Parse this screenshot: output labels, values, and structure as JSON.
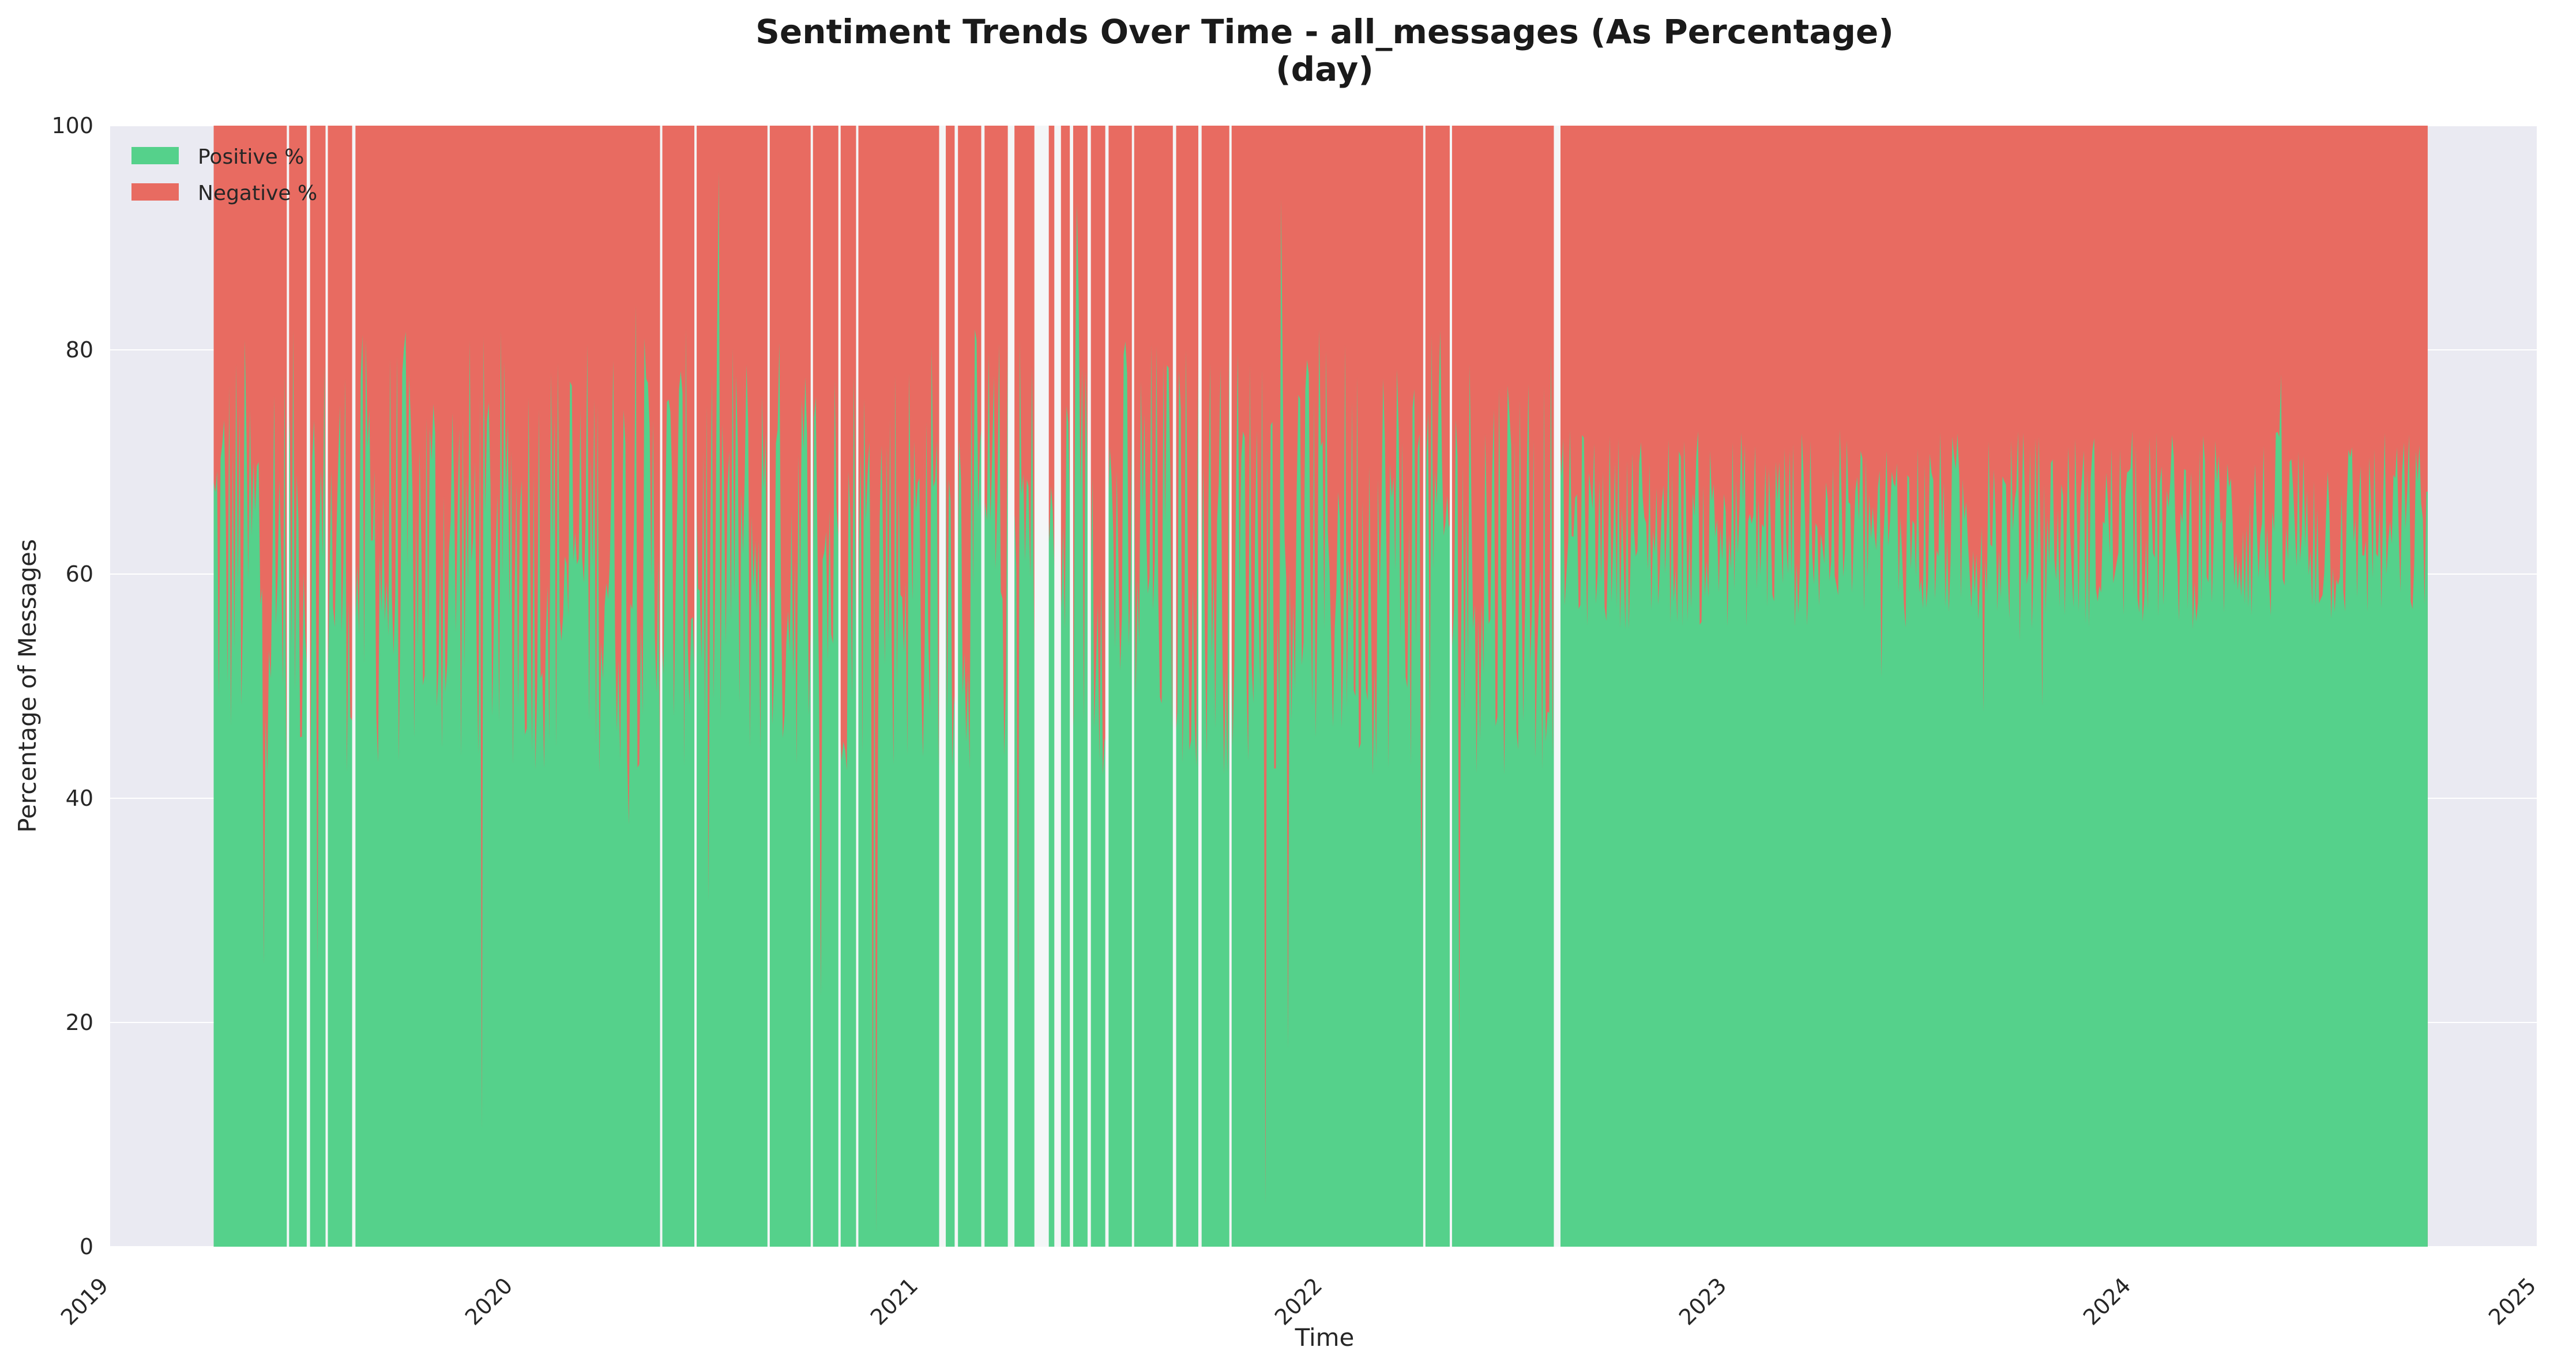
{
  "chart_data": {
    "type": "area",
    "title": "Sentiment Trends Over Time - all_messages (As Percentage)",
    "subtitle": "(day)",
    "xlabel": "Time",
    "ylabel": "Percentage of Messages",
    "x_ticks": [
      "2019",
      "2020",
      "2021",
      "2022",
      "2023",
      "2024",
      "2025"
    ],
    "y_ticks": [
      "0",
      "20",
      "40",
      "60",
      "80",
      "100"
    ],
    "xlim": [
      "2019-01-01",
      "2025-01-01"
    ],
    "ylim": [
      0,
      100
    ],
    "data_range": [
      "2019-04-05",
      "2024-09-24"
    ],
    "stacked": true,
    "grid": true,
    "legend_position": "top-left",
    "series": [
      {
        "name": "Positive %",
        "color": "#55d18b",
        "approx_mean": [
          {
            "period": "2019-04-05 to 2022-07-31",
            "value": 62
          },
          {
            "period": "2022-08-01 to 2024-09-24",
            "value": 64
          }
        ]
      },
      {
        "name": "Negative %",
        "color": "#e86b61",
        "approx_mean": [
          {
            "period": "2019-04-05 to 2022-07-31",
            "value": 38
          },
          {
            "period": "2022-08-01 to 2024-09-24",
            "value": 36
          }
        ]
      }
    ],
    "gaps": [
      [
        "2019-06-10",
        "2019-06-12"
      ],
      [
        "2019-06-28",
        "2019-07-01"
      ],
      [
        "2019-07-15",
        "2019-07-17"
      ],
      [
        "2019-08-08",
        "2019-08-11"
      ],
      [
        "2020-05-12",
        "2020-05-14"
      ],
      [
        "2020-06-12",
        "2020-06-14"
      ],
      [
        "2020-08-17",
        "2020-08-19"
      ],
      [
        "2020-09-25",
        "2020-09-27"
      ],
      [
        "2020-10-20",
        "2020-10-22"
      ],
      [
        "2020-11-05",
        "2020-11-07"
      ],
      [
        "2021-01-19",
        "2021-01-25"
      ],
      [
        "2021-02-02",
        "2021-02-05"
      ],
      [
        "2021-02-26",
        "2021-03-01"
      ],
      [
        "2021-03-22",
        "2021-03-28"
      ],
      [
        "2021-04-15",
        "2021-04-28"
      ],
      [
        "2021-05-03",
        "2021-05-09"
      ],
      [
        "2021-05-17",
        "2021-05-20"
      ],
      [
        "2021-06-02",
        "2021-06-05"
      ],
      [
        "2021-06-18",
        "2021-06-21"
      ],
      [
        "2021-07-12",
        "2021-07-14"
      ],
      [
        "2021-08-18",
        "2021-08-21"
      ],
      [
        "2021-09-10",
        "2021-09-13"
      ],
      [
        "2021-10-08",
        "2021-10-10"
      ],
      [
        "2022-04-01",
        "2022-04-03"
      ],
      [
        "2022-04-25",
        "2022-04-27"
      ],
      [
        "2022-07-28",
        "2022-08-03"
      ]
    ]
  },
  "legend_swatch": {
    "Positive %": "#55d18b",
    "Negative %": "#e86b61"
  },
  "colors": {
    "plot_bg": "#eaeaf2",
    "grid": "#ffffff",
    "positive": "#55d18b",
    "negative": "#e86b61"
  }
}
